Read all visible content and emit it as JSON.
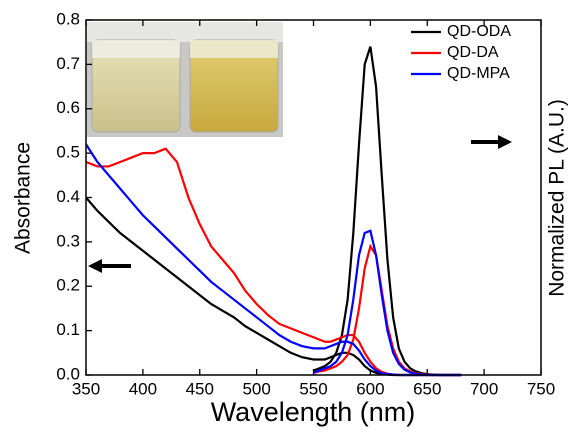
{
  "chart_data": {
    "type": "line",
    "xlabel": "Wavelength (nm)",
    "ylabel": "Absorbance",
    "y2label": "Normalized PL (A.U.)",
    "x": [
      350,
      360,
      370,
      380,
      390,
      400,
      410,
      420,
      430,
      440,
      450,
      460,
      470,
      480,
      490,
      500,
      510,
      520,
      530,
      540,
      550,
      555,
      560,
      565,
      570,
      575,
      580,
      585,
      590,
      595,
      600,
      605,
      610,
      615,
      620,
      625,
      630,
      635,
      640,
      645,
      650,
      655,
      660,
      670,
      680,
      690,
      700,
      710,
      720,
      730,
      740,
      750
    ],
    "xlim": [
      350,
      750
    ],
    "xticks": [
      350,
      400,
      450,
      500,
      550,
      600,
      650,
      700,
      750
    ],
    "ylim": [
      0,
      0.8
    ],
    "yticks": [
      {
        "value": 0,
        "label": "0.0"
      },
      0.1,
      0.2,
      0.3,
      0.4,
      0.5,
      0.6,
      0.7,
      0.8
    ],
    "legend": "upper right",
    "series": [
      {
        "name": "QD-ODA",
        "color": "#000000",
        "values": [
          0.4,
          0.37,
          0.345,
          0.32,
          0.3,
          0.28,
          0.26,
          0.24,
          0.22,
          0.2,
          0.18,
          0.16,
          0.145,
          0.13,
          0.11,
          0.095,
          0.08,
          0.065,
          0.05,
          0.04,
          0.035,
          0.035,
          0.035,
          0.04,
          0.045,
          0.05,
          0.05,
          0.045,
          0.035,
          0.02,
          0.01,
          0.005,
          0.002,
          0.001,
          0,
          0,
          0,
          0,
          0,
          0,
          0,
          0,
          0,
          0,
          0,
          null,
          null,
          null,
          null,
          null,
          null,
          null
        ],
        "pl": [
          null,
          null,
          null,
          null,
          null,
          null,
          null,
          null,
          null,
          null,
          null,
          null,
          null,
          null,
          null,
          null,
          null,
          null,
          null,
          null,
          0.01,
          0.015,
          0.02,
          0.03,
          0.05,
          0.09,
          0.17,
          0.32,
          0.52,
          0.7,
          0.74,
          0.65,
          0.45,
          0.26,
          0.13,
          0.06,
          0.03,
          0.015,
          0.008,
          0.004,
          0.002,
          0.001,
          0,
          0,
          0,
          null,
          null,
          null,
          null,
          null,
          null,
          null
        ]
      },
      {
        "name": "QD-DA",
        "color": "#ff0000",
        "values": [
          0.48,
          0.47,
          0.47,
          0.48,
          0.49,
          0.5,
          0.5,
          0.51,
          0.48,
          0.4,
          0.34,
          0.29,
          0.26,
          0.23,
          0.19,
          0.16,
          0.135,
          0.115,
          0.105,
          0.095,
          0.085,
          0.08,
          0.075,
          0.075,
          0.08,
          0.085,
          0.09,
          0.09,
          0.075,
          0.05,
          0.03,
          0.015,
          0.007,
          0.003,
          0.001,
          0,
          0,
          0,
          0,
          0,
          0,
          0,
          0,
          0,
          0,
          null,
          null,
          null,
          null,
          null,
          null,
          null
        ],
        "pl": [
          null,
          null,
          null,
          null,
          null,
          null,
          null,
          null,
          null,
          null,
          null,
          null,
          null,
          null,
          null,
          null,
          null,
          null,
          null,
          null,
          0.005,
          0.008,
          0.01,
          0.015,
          0.02,
          0.03,
          0.045,
          0.08,
          0.15,
          0.24,
          0.29,
          0.27,
          0.19,
          0.11,
          0.06,
          0.03,
          0.015,
          0.008,
          0.004,
          0.002,
          0.001,
          0,
          0,
          0,
          0,
          null,
          null,
          null,
          null,
          null,
          null,
          null
        ]
      },
      {
        "name": "QD-MPA",
        "color": "#0000ff",
        "values": [
          0.52,
          0.48,
          0.45,
          0.42,
          0.39,
          0.36,
          0.335,
          0.31,
          0.285,
          0.26,
          0.235,
          0.21,
          0.19,
          0.17,
          0.15,
          0.13,
          0.11,
          0.09,
          0.075,
          0.065,
          0.06,
          0.06,
          0.06,
          0.065,
          0.07,
          0.075,
          0.075,
          0.07,
          0.055,
          0.035,
          0.02,
          0.01,
          0.004,
          0.002,
          0.001,
          0,
          0,
          0,
          0,
          0,
          0,
          0,
          0,
          0,
          0,
          null,
          null,
          null,
          null,
          null,
          null,
          null
        ],
        "pl": [
          null,
          null,
          null,
          null,
          null,
          null,
          null,
          null,
          null,
          null,
          null,
          null,
          null,
          null,
          null,
          null,
          null,
          null,
          null,
          null,
          0.005,
          0.01,
          0.015,
          0.02,
          0.03,
          0.05,
          0.09,
          0.17,
          0.27,
          0.32,
          0.325,
          0.27,
          0.18,
          0.1,
          0.05,
          0.025,
          0.012,
          0.006,
          0.003,
          0.001,
          0,
          0,
          0,
          0,
          0,
          null,
          null,
          null,
          null,
          null,
          null,
          null
        ]
      }
    ]
  }
}
